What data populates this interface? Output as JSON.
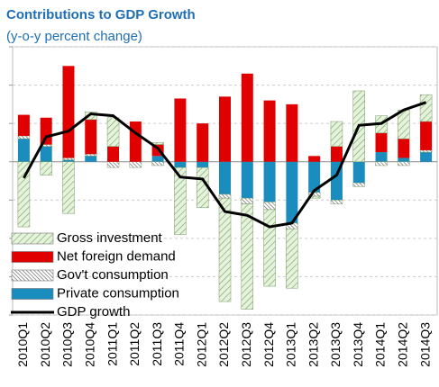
{
  "chart_data": {
    "type": "bar",
    "title": "Contributions to GDP Growth",
    "subtitle": "(y-o-y percent change)",
    "categories": [
      "2010Q1",
      "2010Q2",
      "2010Q3",
      "2010Q4",
      "2011Q1",
      "2011Q2",
      "2011Q3",
      "2011Q4",
      "2012Q1",
      "2012Q2",
      "2012Q3",
      "2012Q4",
      "2013Q1",
      "2013Q2",
      "2013Q3",
      "2013Q4",
      "2014Q1",
      "2014Q2",
      "2014Q3"
    ],
    "series": [
      {
        "name": "Gross investment",
        "color": "#d9ead0",
        "pattern": "hatch-green",
        "values": [
          -3.4,
          -0.7,
          -2.7,
          0.4,
          1.5,
          0,
          0.1,
          -3.5,
          -2.1,
          -5.4,
          -5.5,
          -4.0,
          -3.1,
          -0.1,
          1.3,
          3.7,
          0.9,
          1.5,
          1.4
        ]
      },
      {
        "name": "Net foreign demand",
        "color": "#e00000",
        "values": [
          1.1,
          1.4,
          4.8,
          1.8,
          0.8,
          2.1,
          0.6,
          3.3,
          2.0,
          3.4,
          4.6,
          3.2,
          3.0,
          0.3,
          0.8,
          0,
          1.0,
          1.0,
          1.5
        ]
      },
      {
        "name": "Gov't consumption",
        "color": "#ffffff",
        "pattern": "hatch-gray",
        "values": [
          0.15,
          0.1,
          0.1,
          0.1,
          -0.3,
          -0.3,
          -0.2,
          0,
          0,
          -0.2,
          -0.3,
          -0.4,
          -0.3,
          -0.2,
          -0.2,
          -0.2,
          -0.2,
          -0.2,
          0.1
        ]
      },
      {
        "name": "Private consumption",
        "color": "#1a8cbe",
        "values": [
          1.2,
          0.8,
          0.1,
          0.3,
          0,
          0,
          0.3,
          -0.3,
          -0.3,
          -1.7,
          -1.9,
          -2.1,
          -3.2,
          -1.6,
          -2.0,
          -1.1,
          0.5,
          0.2,
          0.5
        ]
      },
      {
        "name": "GDP growth",
        "color": "#000000",
        "type": "line",
        "values": [
          -0.85,
          1.3,
          1.6,
          2.5,
          2.4,
          1.5,
          0.7,
          -0.8,
          -0.9,
          -2.6,
          -2.8,
          -3.4,
          -3.2,
          -1.5,
          -0.7,
          1.9,
          2.0,
          2.7,
          3.1
        ]
      }
    ],
    "ylim": [
      -8,
      6
    ],
    "yticks": [
      -8,
      -6,
      -4,
      -2,
      0,
      2,
      4,
      6
    ],
    "grid": true,
    "legend": "lower-left"
  }
}
